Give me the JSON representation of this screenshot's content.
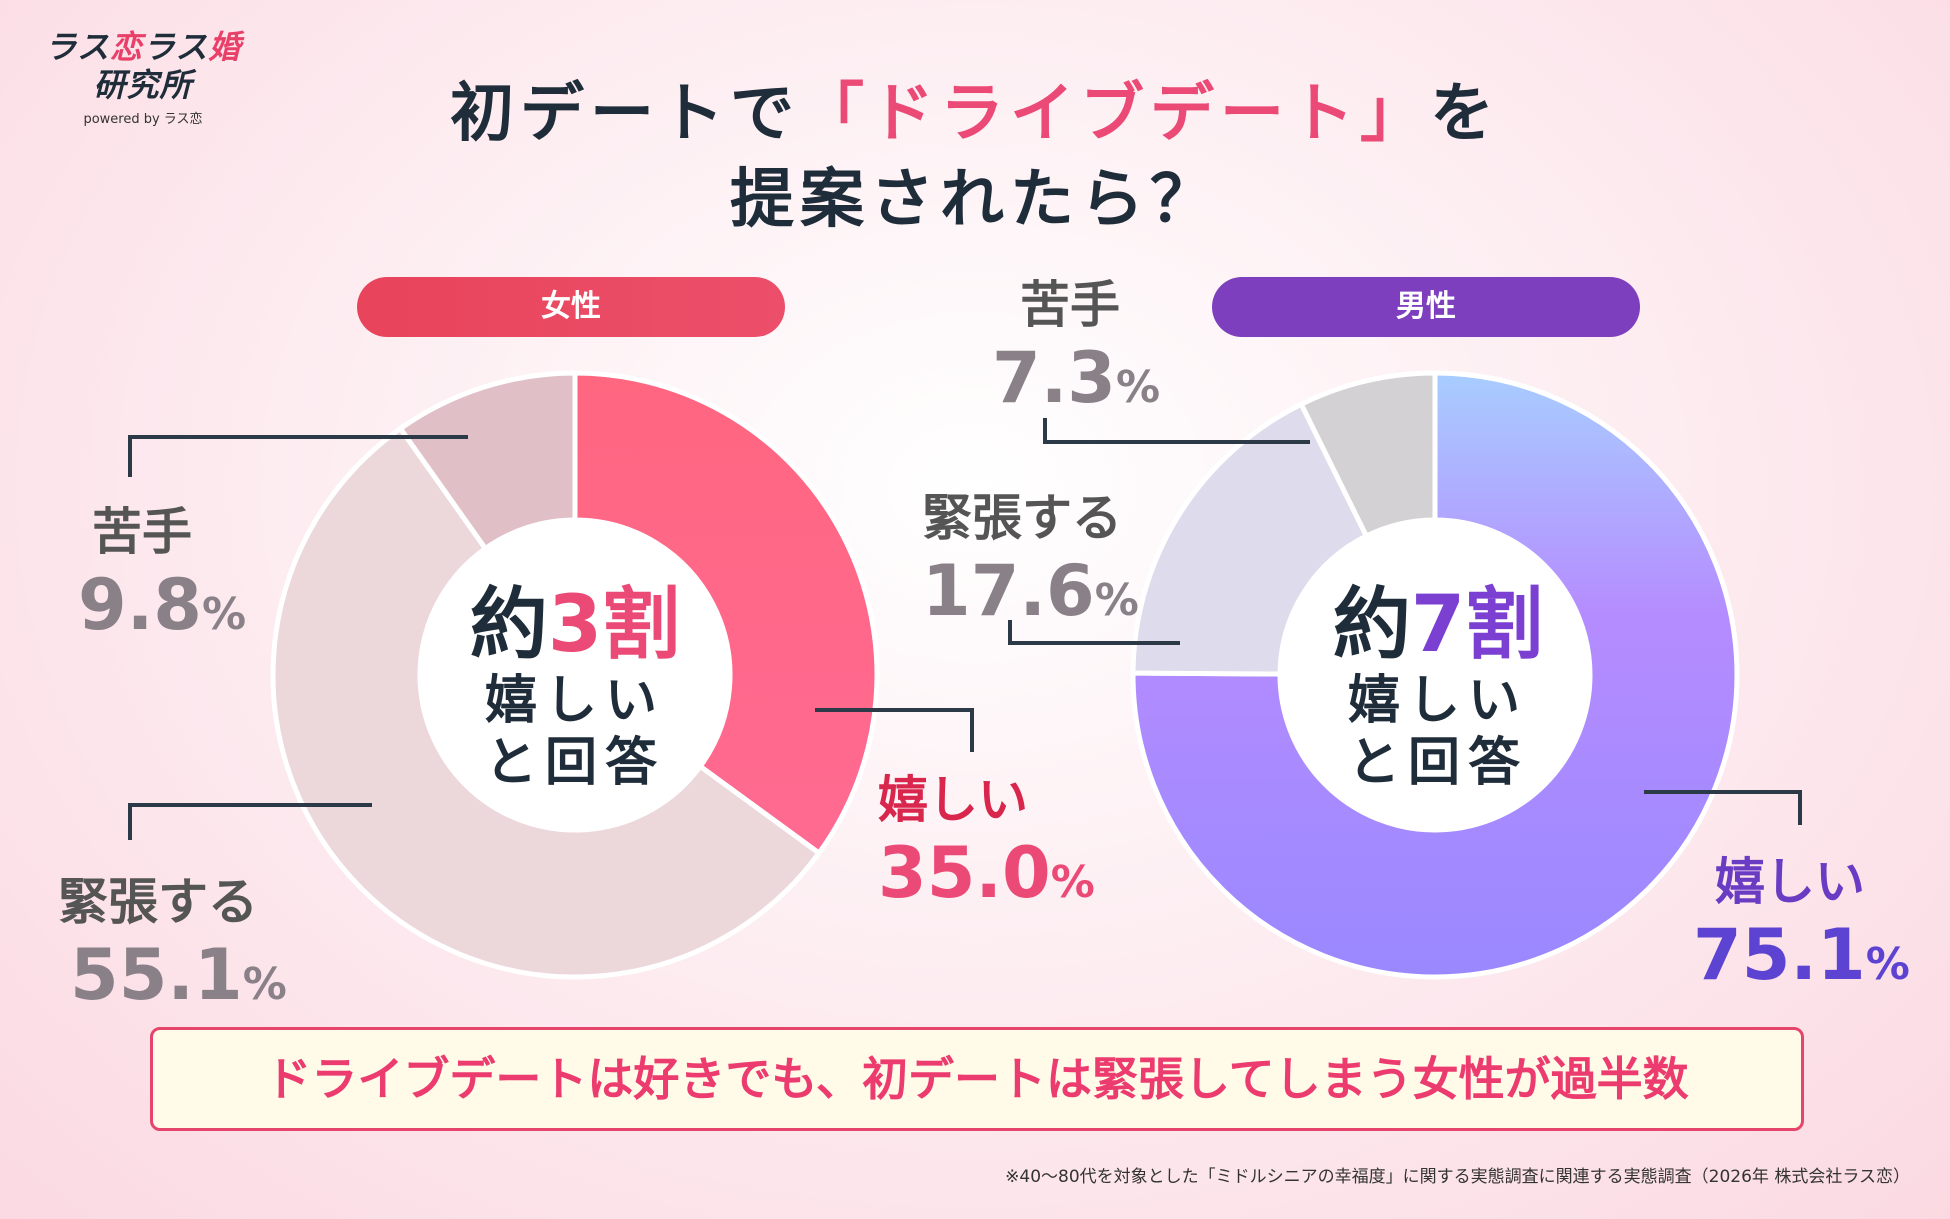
{
  "logo": {
    "line1a": "ラス",
    "line1b": "恋",
    "line1c": "ラス",
    "line1d": "婚",
    "line2": "研究所",
    "sub": "powered by ラス恋"
  },
  "title": {
    "line1_pre": "初デートで",
    "line1_hl": "「ドライブデート」",
    "line1_post": "を",
    "line2": "提案されたら？"
  },
  "colors": {
    "female_accent": "#ec4a76",
    "male_accent": "#7b3fd2",
    "banner_text": "#ec3b6e"
  },
  "chart_data": [
    {
      "type": "pie",
      "title": "女性",
      "series": [
        {
          "name": "嬉しい",
          "value": 35.0,
          "color": "#ff6685"
        },
        {
          "name": "緊張する",
          "value": 55.1,
          "color": "#ecd7db"
        },
        {
          "name": "苦手",
          "value": 9.8,
          "color": "#e0c0c6"
        }
      ],
      "center": {
        "pre": "約",
        "hl": "3割",
        "l2": "嬉しい",
        "l3": "と回答"
      },
      "labels": [
        {
          "name": "嬉しい",
          "value": "35.0",
          "unit": "%"
        },
        {
          "name": "緊張する",
          "value": "55.1",
          "unit": "%"
        },
        {
          "name": "苦手",
          "value": "9.8",
          "unit": "%"
        }
      ]
    },
    {
      "type": "pie",
      "title": "男性",
      "series": [
        {
          "name": "嬉しい",
          "value": 75.1,
          "color": "#b086ff"
        },
        {
          "name": "緊張する",
          "value": 17.6,
          "color": "#dddbec"
        },
        {
          "name": "苦手",
          "value": 7.3,
          "color": "#d3d1d3"
        }
      ],
      "center": {
        "pre": "約",
        "hl": "7割",
        "l2": "嬉しい",
        "l3": "と回答"
      },
      "labels": [
        {
          "name": "嬉しい",
          "value": "75.1",
          "unit": "%"
        },
        {
          "name": "緊張する",
          "value": "17.6",
          "unit": "%"
        },
        {
          "name": "苦手",
          "value": "7.3",
          "unit": "%"
        }
      ]
    }
  ],
  "banner": "ドライブデートは好きでも、初デートは緊張してしまう女性が過半数",
  "footnote": "※40〜80代を対象とした「ミドルシニアの幸福度」に関する実態調査に関連する実態調査（2026年 株式会社ラス恋）"
}
